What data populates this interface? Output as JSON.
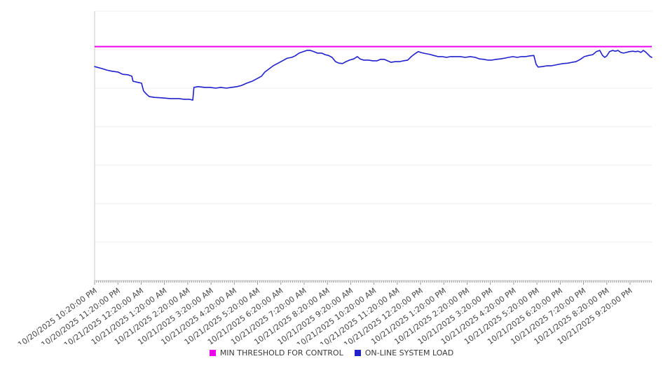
{
  "chart_data": {
    "type": "line",
    "title": "",
    "legend_position": "bottom",
    "x_axis": {
      "total_minutes": 1436,
      "minor_tick_interval_minutes": 5,
      "hour_tick_interval_minutes": 60,
      "tick_labels": [
        "10/20/2025 10:20:00 PM",
        "10/20/2025 11:20:00 PM",
        "10/21/2025 12:20:00 AM",
        "10/21/2025 1:20:00 AM",
        "10/21/2025 2:20:00 AM",
        "10/21/2025 3:20:00 AM",
        "10/21/2025 4:20:00 AM",
        "10/21/2025 5:20:00 AM",
        "10/21/2025 6:20:00 AM",
        "10/21/2025 7:20:00 AM",
        "10/21/2025 8:20:00 AM",
        "10/21/2025 9:20:00 AM",
        "10/21/2025 10:20:00 AM",
        "10/21/2025 11:20:00 AM",
        "10/21/2025 12:20:00 PM",
        "10/21/2025 1:20:00 PM",
        "10/21/2025 2:20:00 PM",
        "10/21/2025 3:20:00 PM",
        "10/21/2025 4:20:00 PM",
        "10/21/2025 5:20:00 PM",
        "10/21/2025 6:20:00 PM",
        "10/21/2025 7:20:00 PM",
        "10/21/2025 8:20:00 PM",
        "10/21/2025 9:20:00 PM"
      ]
    },
    "y_axis": {
      "ylim": [
        0,
        70
      ],
      "grid_step": 10,
      "tick_labels_shown": false
    },
    "colors": {
      "grid": "#ececec",
      "axis": "#c8c8c8",
      "tick": "#999999",
      "axis_label_text": "#444444",
      "legend_text": "#3a3a3a",
      "background": "#ffffff"
    },
    "series": [
      {
        "name": "MIN THRESHOLD FOR CONTROL",
        "type": "threshold",
        "color": "#ee00ee",
        "value": 60.8
      },
      {
        "name": "ON-LINE SYSTEM LOAD",
        "type": "line",
        "color": "#2020cc",
        "points": [
          [
            0,
            55.6
          ],
          [
            18,
            55.1
          ],
          [
            31,
            54.7
          ],
          [
            45,
            54.4
          ],
          [
            60,
            54.2
          ],
          [
            72,
            53.6
          ],
          [
            85,
            53.5
          ],
          [
            96,
            53.1
          ],
          [
            99,
            51.8
          ],
          [
            112,
            51.5
          ],
          [
            121,
            51.3
          ],
          [
            126,
            49.3
          ],
          [
            134,
            48.4
          ],
          [
            141,
            47.8
          ],
          [
            154,
            47.6
          ],
          [
            172,
            47.5
          ],
          [
            195,
            47.3
          ],
          [
            217,
            47.3
          ],
          [
            231,
            47.1
          ],
          [
            244,
            47.1
          ],
          [
            253,
            46.9
          ],
          [
            256,
            50.2
          ],
          [
            267,
            50.4
          ],
          [
            284,
            50.2
          ],
          [
            298,
            50.2
          ],
          [
            312,
            50.0
          ],
          [
            325,
            50.2
          ],
          [
            340,
            50.0
          ],
          [
            352,
            50.2
          ],
          [
            367,
            50.4
          ],
          [
            379,
            50.7
          ],
          [
            392,
            51.3
          ],
          [
            406,
            51.8
          ],
          [
            419,
            52.5
          ],
          [
            430,
            53.1
          ],
          [
            439,
            54.2
          ],
          [
            448,
            54.9
          ],
          [
            460,
            55.8
          ],
          [
            471,
            56.4
          ],
          [
            484,
            57.1
          ],
          [
            497,
            57.8
          ],
          [
            508,
            58.0
          ],
          [
            517,
            58.4
          ],
          [
            527,
            59.1
          ],
          [
            538,
            59.5
          ],
          [
            547,
            59.8
          ],
          [
            556,
            59.8
          ],
          [
            565,
            59.5
          ],
          [
            574,
            59.1
          ],
          [
            585,
            59.1
          ],
          [
            594,
            58.7
          ],
          [
            603,
            58.5
          ],
          [
            612,
            58.0
          ],
          [
            621,
            56.9
          ],
          [
            630,
            56.5
          ],
          [
            639,
            56.4
          ],
          [
            648,
            56.9
          ],
          [
            657,
            57.3
          ],
          [
            668,
            57.6
          ],
          [
            677,
            58.2
          ],
          [
            684,
            57.6
          ],
          [
            693,
            57.3
          ],
          [
            706,
            57.3
          ],
          [
            717,
            57.1
          ],
          [
            728,
            57.1
          ],
          [
            737,
            57.5
          ],
          [
            746,
            57.5
          ],
          [
            755,
            57.1
          ],
          [
            764,
            56.7
          ],
          [
            775,
            56.9
          ],
          [
            786,
            56.9
          ],
          [
            796,
            57.1
          ],
          [
            807,
            57.3
          ],
          [
            816,
            58.2
          ],
          [
            825,
            58.9
          ],
          [
            834,
            59.5
          ],
          [
            843,
            59.2
          ],
          [
            852,
            59.0
          ],
          [
            863,
            58.8
          ],
          [
            874,
            58.5
          ],
          [
            885,
            58.2
          ],
          [
            896,
            58.2
          ],
          [
            907,
            58.0
          ],
          [
            917,
            58.2
          ],
          [
            930,
            58.2
          ],
          [
            943,
            58.2
          ],
          [
            955,
            58.0
          ],
          [
            968,
            58.2
          ],
          [
            981,
            58.0
          ],
          [
            992,
            57.6
          ],
          [
            1003,
            57.5
          ],
          [
            1013,
            57.3
          ],
          [
            1024,
            57.3
          ],
          [
            1035,
            57.5
          ],
          [
            1046,
            57.6
          ],
          [
            1057,
            57.8
          ],
          [
            1067,
            58.0
          ],
          [
            1078,
            58.2
          ],
          [
            1089,
            58.0
          ],
          [
            1100,
            58.2
          ],
          [
            1111,
            58.2
          ],
          [
            1122,
            58.4
          ],
          [
            1132,
            58.5
          ],
          [
            1138,
            56.2
          ],
          [
            1143,
            55.5
          ],
          [
            1154,
            55.6
          ],
          [
            1165,
            55.8
          ],
          [
            1176,
            55.8
          ],
          [
            1187,
            56.0
          ],
          [
            1197,
            56.2
          ],
          [
            1208,
            56.4
          ],
          [
            1219,
            56.5
          ],
          [
            1230,
            56.7
          ],
          [
            1241,
            56.9
          ],
          [
            1252,
            57.5
          ],
          [
            1262,
            58.2
          ],
          [
            1273,
            58.5
          ],
          [
            1284,
            58.7
          ],
          [
            1293,
            59.5
          ],
          [
            1302,
            59.8
          ],
          [
            1309,
            58.5
          ],
          [
            1315,
            58.0
          ],
          [
            1320,
            58.4
          ],
          [
            1327,
            59.5
          ],
          [
            1335,
            59.8
          ],
          [
            1342,
            59.6
          ],
          [
            1349,
            59.8
          ],
          [
            1356,
            59.3
          ],
          [
            1363,
            59.1
          ],
          [
            1371,
            59.3
          ],
          [
            1378,
            59.5
          ],
          [
            1387,
            59.6
          ],
          [
            1394,
            59.5
          ],
          [
            1401,
            59.6
          ],
          [
            1408,
            59.3
          ],
          [
            1414,
            59.8
          ],
          [
            1419,
            59.5
          ],
          [
            1427,
            58.7
          ],
          [
            1432,
            58.2
          ],
          [
            1436,
            58.0
          ]
        ]
      }
    ]
  }
}
